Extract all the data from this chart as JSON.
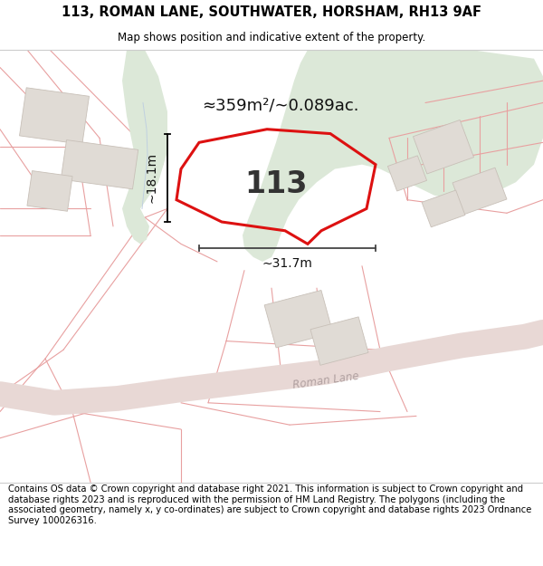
{
  "title_line1": "113, ROMAN LANE, SOUTHWATER, HORSHAM, RH13 9AF",
  "title_line2": "Map shows position and indicative extent of the property.",
  "footer": "Contains OS data © Crown copyright and database right 2021. This information is subject to Crown copyright and database rights 2023 and is reproduced with the permission of HM Land Registry. The polygons (including the associated geometry, namely x, y co-ordinates) are subject to Crown copyright and database rights 2023 Ordnance Survey 100026316.",
  "area_label": "≈359m²/∼0.089ac.",
  "number_label": "113",
  "dim_width": "∼31.7m",
  "dim_height": "∼18.1m",
  "road_label": "Roman Lane",
  "bg_color": "#f5f3ef",
  "map_bg": "#f5f3ef",
  "green_fill": "#dce8d8",
  "road_color": "#f0d8d5",
  "plot_fill": "#eae6e0",
  "plot_outline": "#dd1111",
  "building_fill": "#e0dbd5",
  "building_outline": "#c8c0b8",
  "parcel_line": "#e8a0a0",
  "title_fontsize": 10.5,
  "footer_fontsize": 7.2
}
